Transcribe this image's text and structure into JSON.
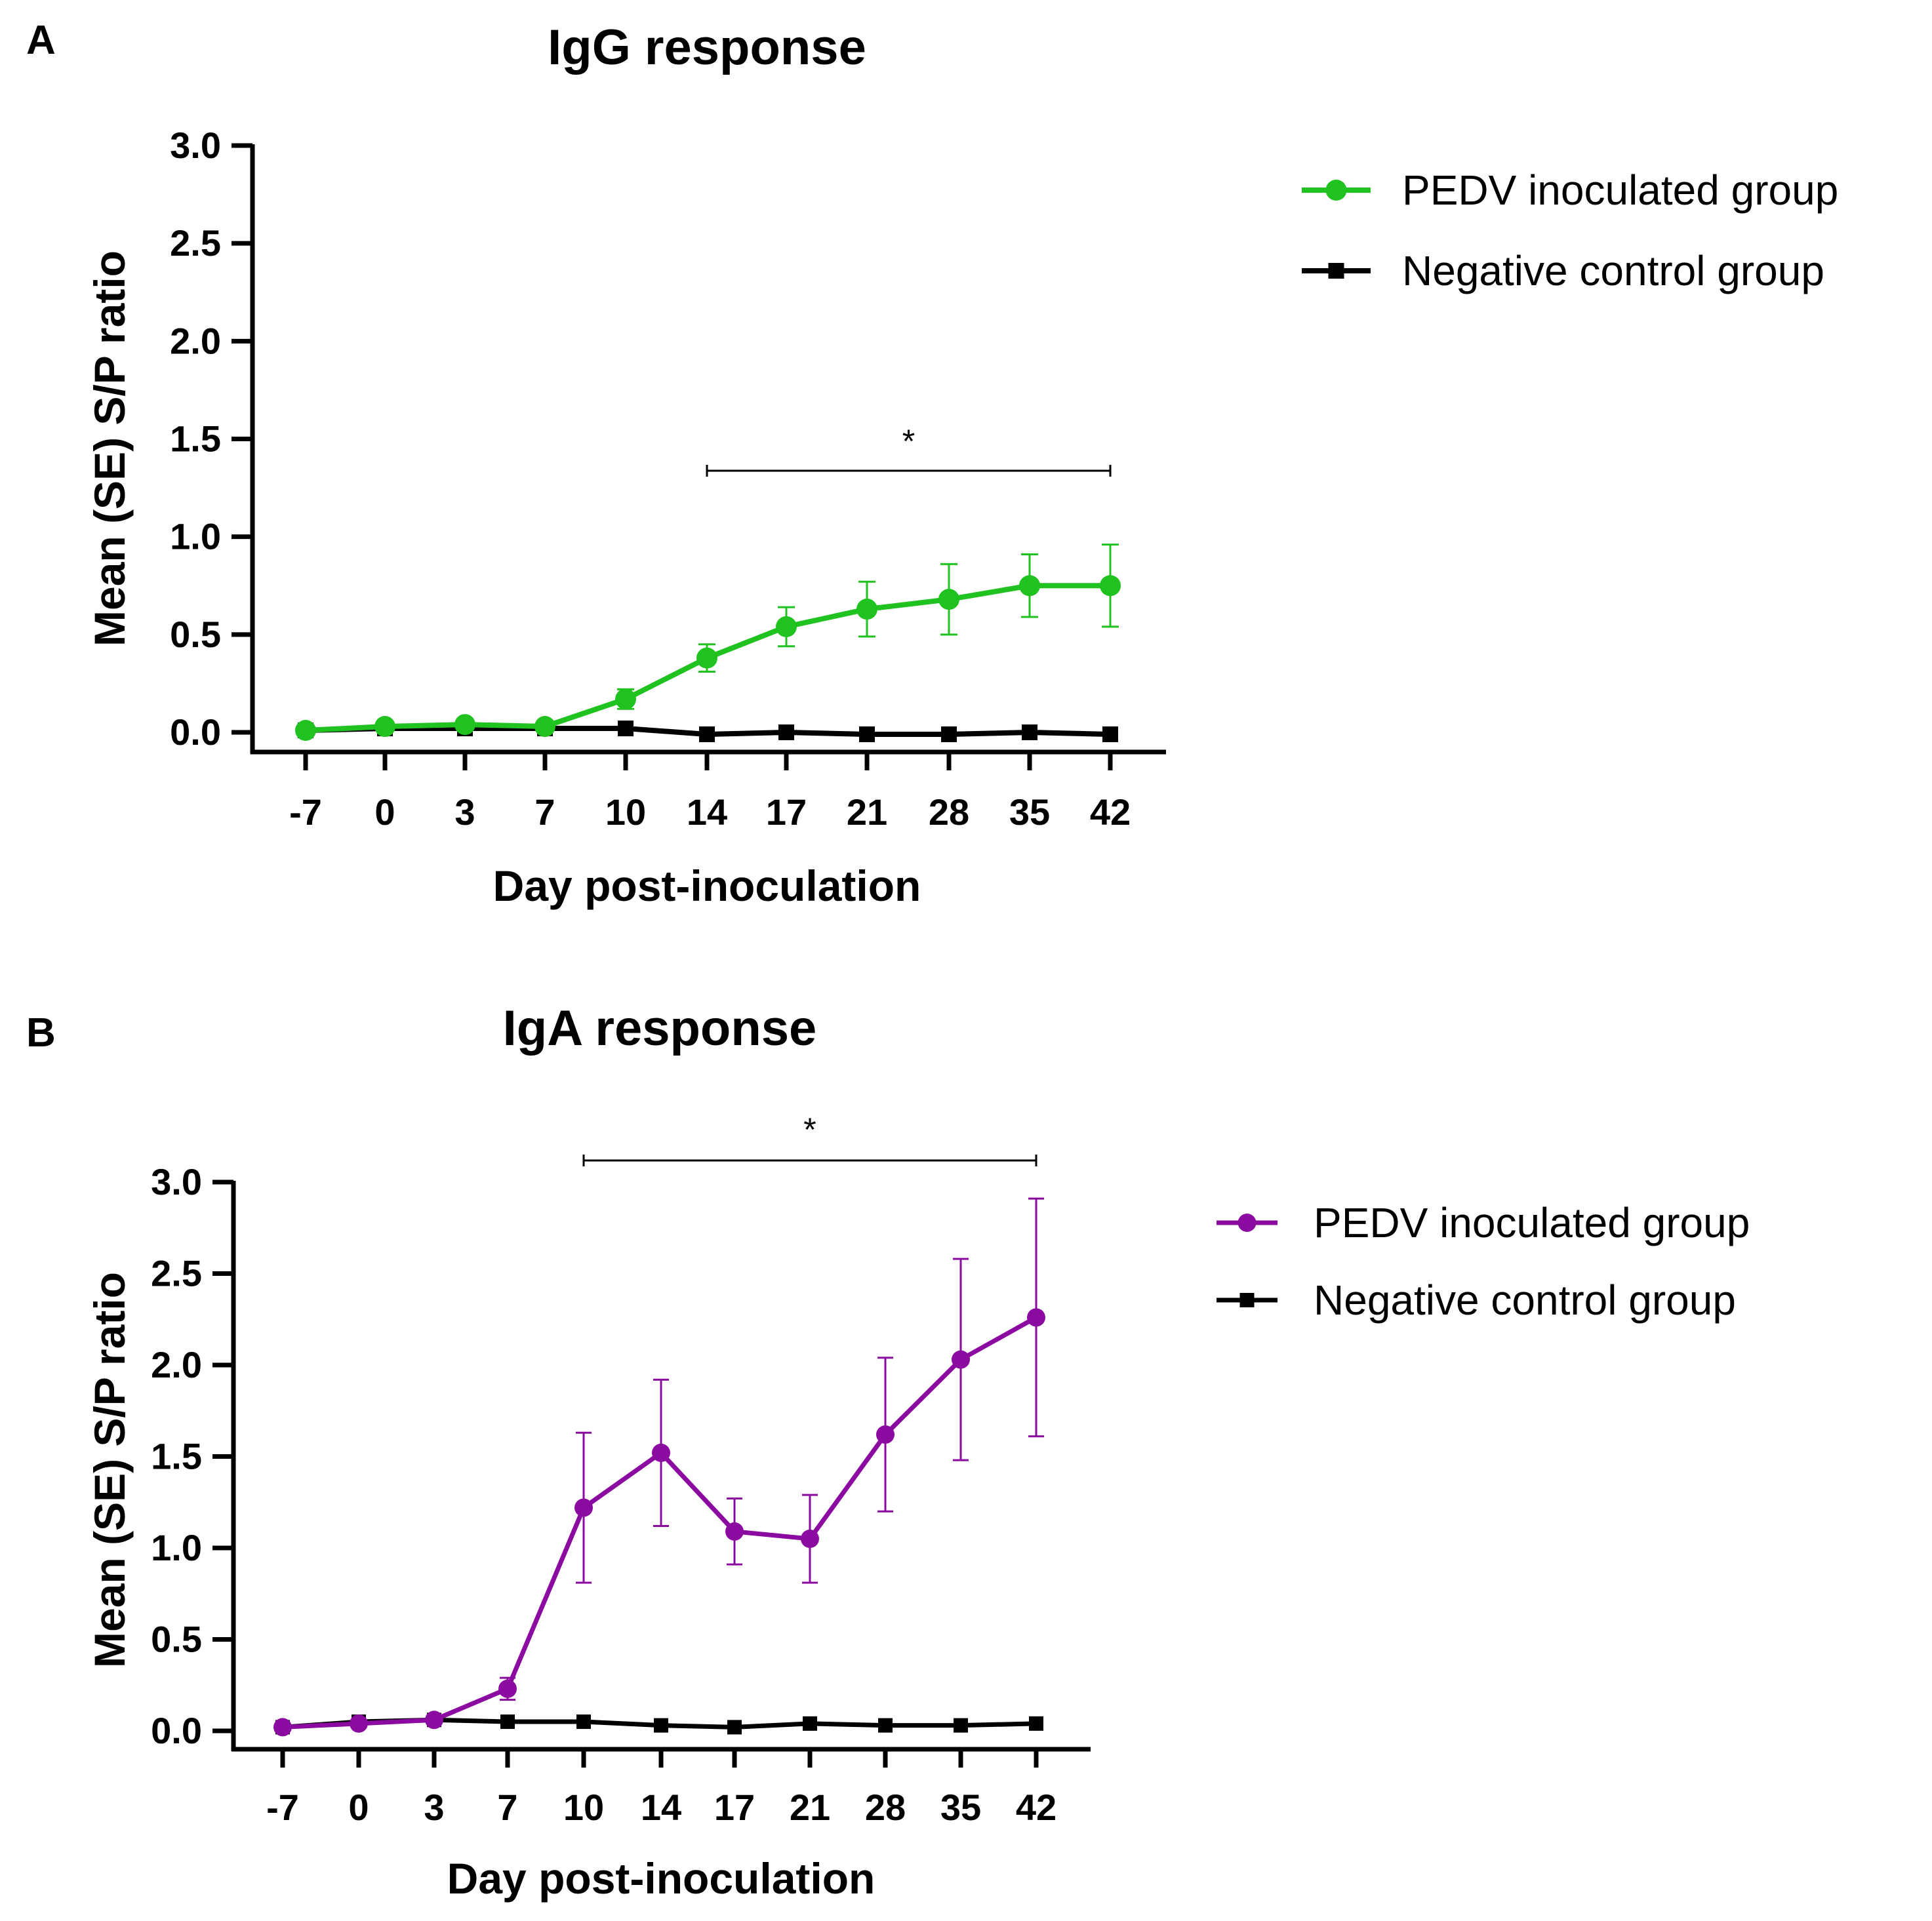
{
  "chart_data": [
    {
      "panel_label": "A",
      "type": "line",
      "title": "IgG response",
      "xlabel": "Day post-inoculation",
      "ylabel": "Mean (SE) S/P ratio",
      "categories": [
        "-7",
        "0",
        "3",
        "7",
        "10",
        "14",
        "17",
        "21",
        "28",
        "35",
        "42"
      ],
      "ylim": [
        0,
        3.0
      ],
      "yticks": [
        "0.0",
        "0.5",
        "1.0",
        "1.5",
        "2.0",
        "2.5",
        "3.0"
      ],
      "legend_position": "top-right, outside plot",
      "significance": {
        "label": "*",
        "from": "14",
        "to": "42"
      },
      "series": [
        {
          "name": "PEDV inoculated group",
          "color": "#1fc21f",
          "marker": "circle",
          "values": [
            0.01,
            0.03,
            0.04,
            0.03,
            0.17,
            0.38,
            0.54,
            0.63,
            0.68,
            0.75,
            0.75
          ],
          "se": [
            0.01,
            0.01,
            0.01,
            0.01,
            0.05,
            0.07,
            0.1,
            0.14,
            0.18,
            0.16,
            0.21
          ]
        },
        {
          "name": "Negative control group",
          "color": "#000000",
          "marker": "square",
          "values": [
            0.01,
            0.02,
            0.02,
            0.02,
            0.02,
            -0.01,
            0.0,
            -0.01,
            -0.01,
            0.0,
            -0.01
          ],
          "se": []
        }
      ]
    },
    {
      "panel_label": "B",
      "type": "line",
      "title": "IgA response",
      "xlabel": "Day post-inoculation",
      "ylabel": "Mean (SE) S/P ratio",
      "categories": [
        "-7",
        "0",
        "3",
        "7",
        "10",
        "14",
        "17",
        "21",
        "28",
        "35",
        "42"
      ],
      "ylim": [
        0,
        3.0
      ],
      "yticks": [
        "0.0",
        "0.5",
        "1.0",
        "1.5",
        "2.0",
        "2.5",
        "3.0"
      ],
      "legend_position": "top-right, outside plot",
      "significance": {
        "label": "*",
        "from": "10",
        "to": "42"
      },
      "series": [
        {
          "name": "PEDV inoculated group",
          "color": "#8b0aa0",
          "marker": "circle",
          "values": [
            0.02,
            0.04,
            0.06,
            0.23,
            1.22,
            1.52,
            1.09,
            1.05,
            1.62,
            2.03,
            2.26
          ],
          "se": [
            0.01,
            0.01,
            0.01,
            0.06,
            0.41,
            0.4,
            0.18,
            0.24,
            0.42,
            0.55,
            0.65
          ]
        },
        {
          "name": "Negative control group",
          "color": "#000000",
          "marker": "square",
          "values": [
            0.02,
            0.05,
            0.06,
            0.05,
            0.05,
            0.03,
            0.02,
            0.04,
            0.03,
            0.03,
            0.04
          ],
          "se": []
        }
      ]
    }
  ]
}
